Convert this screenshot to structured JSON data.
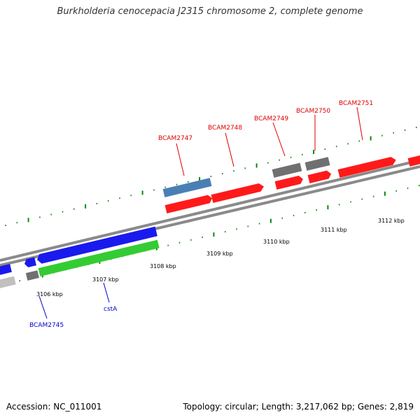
{
  "title": "Burkholderia cenocepacia J2315 chromosome 2, complete genome",
  "footer": {
    "accession": "Accession: NC_011001",
    "summary": "Topology: circular; Length: 3,217,062 bp; Genes: 2,819"
  },
  "colors": {
    "backbone": "#8a8a8a",
    "tick": "#0a8a0a",
    "label_red": "#dd0000",
    "label_blue": "#0000cc",
    "forward_cds": "#ff1a1a",
    "other_feature": "#707070",
    "blue_cds": "#1a1aee",
    "steel_feature": "#4a7fb5",
    "green_feature": "#33cc33",
    "light_gray": "#c0c0c0"
  },
  "scale_labels": [
    "3106 kbp",
    "3107 kbp",
    "3108 kbp",
    "3109 kbp",
    "3110 kbp",
    "3111 kbp",
    "3112 kbp"
  ],
  "gene_labels": [
    {
      "id": "bcam2745",
      "text": "BCAM2745",
      "color": "blue"
    },
    {
      "id": "csta",
      "text": "cstA",
      "color": "blue"
    },
    {
      "id": "bcam2747",
      "text": "BCAM2747",
      "color": "red"
    },
    {
      "id": "bcam2748",
      "text": "BCAM2748",
      "color": "red"
    },
    {
      "id": "bcam2749",
      "text": "BCAM2749",
      "color": "red"
    },
    {
      "id": "bcam2750",
      "text": "BCAM2750",
      "color": "red"
    },
    {
      "id": "bcam2751",
      "text": "BCAM2751",
      "color": "red"
    }
  ]
}
